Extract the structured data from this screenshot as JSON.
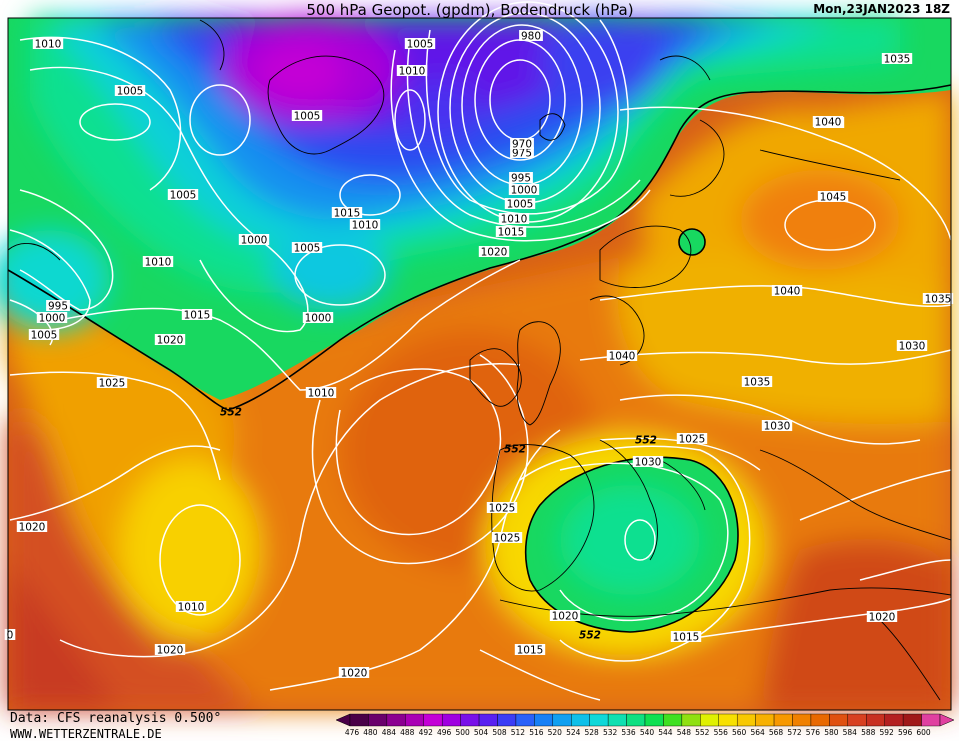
{
  "header": {
    "title": "500 hPa Geopot. (gpdm), Bodendruck (hPa)",
    "date": "Mon,23JAN2023 18Z"
  },
  "footer": {
    "source": "Data: CFS reanalysis 0.500°",
    "website": "WWW.WETTERZENTRALE.DE"
  },
  "legend": {
    "values": [
      "476",
      "480",
      "484",
      "488",
      "492",
      "496",
      "500",
      "504",
      "508",
      "512",
      "516",
      "520",
      "524",
      "528",
      "532",
      "536",
      "540",
      "544",
      "548",
      "552",
      "556",
      "560",
      "564",
      "568",
      "572",
      "576",
      "580",
      "584",
      "588",
      "592",
      "596",
      "600"
    ],
    "colors": [
      "#4a0047",
      "#6a006b",
      "#8c0090",
      "#aa00b4",
      "#c400d6",
      "#a000e0",
      "#7a10e8",
      "#5a20f0",
      "#3c3cf5",
      "#2a60f8",
      "#1880f5",
      "#12a0f0",
      "#10c0e8",
      "#10d8d8",
      "#10e0b0",
      "#10e080",
      "#10e050",
      "#40e020",
      "#90e010",
      "#e0f000",
      "#f8e000",
      "#f8c800",
      "#f8b000",
      "#f89800",
      "#f08000",
      "#e86800",
      "#e05010",
      "#d84020",
      "#c83020",
      "#b42020",
      "#a01818",
      "#e040a0"
    ]
  },
  "labels": {
    "isobars": [
      "1010",
      "1005",
      "1005",
      "1010",
      "1005",
      "980",
      "975",
      "970",
      "995",
      "1000",
      "1005",
      "1010",
      "1015",
      "1035",
      "1040",
      "1005",
      "1000",
      "1005",
      "1015",
      "1010",
      "1020",
      "1045",
      "995",
      "1000",
      "1005",
      "1010",
      "1015",
      "1020",
      "1000",
      "552",
      "1040",
      "1035",
      "1040",
      "1030",
      "1025",
      "1010",
      "552",
      "1035",
      "1030",
      "1025",
      "552",
      "1025",
      "1030",
      "1020",
      "1025",
      "1010",
      "1020",
      "552",
      "1020",
      "1015",
      "1020",
      "1015",
      "1020",
      "0",
      "1040"
    ]
  }
}
